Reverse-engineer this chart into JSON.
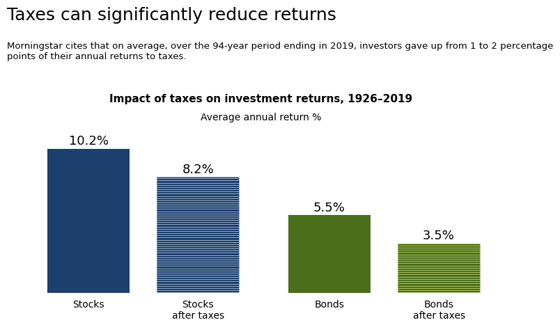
{
  "title": "Taxes can significantly reduce returns",
  "subtitle": "Morningstar cites that on average, over the 94-year period ending in 2019, investors gave up from 1 to 2 percentage\npoints of their annual returns to taxes.",
  "chart_title": "Impact of taxes on investment returns, 1926–2019",
  "chart_subtitle": "Average annual return %",
  "categories": [
    "Stocks",
    "Stocks\nafter taxes",
    "Bonds",
    "Bonds\nafter taxes"
  ],
  "values": [
    10.2,
    8.2,
    5.5,
    3.5
  ],
  "labels": [
    "10.2%",
    "8.2%",
    "5.5%",
    "3.5%"
  ],
  "solid_colors": [
    "#1c3f6e",
    "#1c3f6e",
    "#4a6e1a",
    "#4a6e1a"
  ],
  "hatched": [
    false,
    true,
    false,
    true
  ],
  "hatch_bg_stock": "#b8c8d8",
  "hatch_line_stock": "#1c3f6e",
  "hatch_bg_bond": "#c8dc78",
  "hatch_line_bond": "#4a6e1a",
  "ylim": [
    0,
    12
  ],
  "bar_width": 0.75,
  "x_positions": [
    0,
    1.0,
    2.2,
    3.2
  ],
  "background_color": "#ffffff",
  "title_fontsize": 18,
  "subtitle_fontsize": 9.5,
  "chart_title_fontsize": 11,
  "chart_subtitle_fontsize": 10,
  "label_fontsize": 13,
  "tick_fontsize": 10
}
